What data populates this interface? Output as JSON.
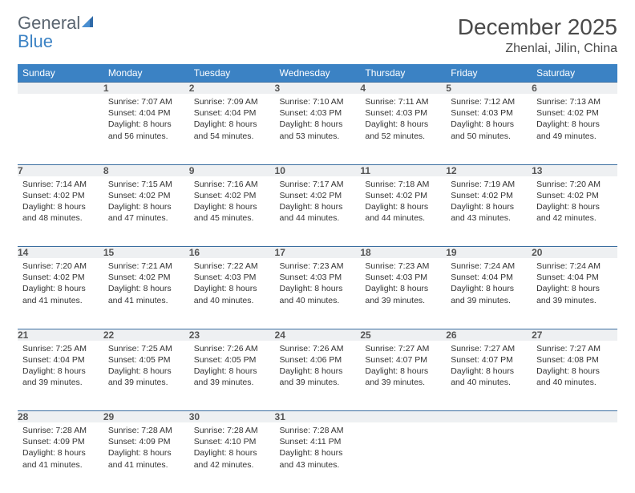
{
  "logo": {
    "word1": "General",
    "word2": "Blue"
  },
  "title": "December 2025",
  "location": "Zhenlai, Jilin, China",
  "headers": [
    "Sunday",
    "Monday",
    "Tuesday",
    "Wednesday",
    "Thursday",
    "Friday",
    "Saturday"
  ],
  "colors": {
    "header_bg": "#3b82c4",
    "header_text": "#ffffff",
    "daynum_bg": "#eef0f2",
    "row_border": "#3b6ea0",
    "text": "#333333",
    "logo_gray": "#5a6570",
    "logo_blue": "#3b82c4"
  },
  "weeks": [
    {
      "nums": [
        "",
        "1",
        "2",
        "3",
        "4",
        "5",
        "6"
      ],
      "cells": [
        null,
        {
          "sunrise": "7:07 AM",
          "sunset": "4:04 PM",
          "daylight": "8 hours and 56 minutes."
        },
        {
          "sunrise": "7:09 AM",
          "sunset": "4:04 PM",
          "daylight": "8 hours and 54 minutes."
        },
        {
          "sunrise": "7:10 AM",
          "sunset": "4:03 PM",
          "daylight": "8 hours and 53 minutes."
        },
        {
          "sunrise": "7:11 AM",
          "sunset": "4:03 PM",
          "daylight": "8 hours and 52 minutes."
        },
        {
          "sunrise": "7:12 AM",
          "sunset": "4:03 PM",
          "daylight": "8 hours and 50 minutes."
        },
        {
          "sunrise": "7:13 AM",
          "sunset": "4:02 PM",
          "daylight": "8 hours and 49 minutes."
        }
      ]
    },
    {
      "nums": [
        "7",
        "8",
        "9",
        "10",
        "11",
        "12",
        "13"
      ],
      "cells": [
        {
          "sunrise": "7:14 AM",
          "sunset": "4:02 PM",
          "daylight": "8 hours and 48 minutes."
        },
        {
          "sunrise": "7:15 AM",
          "sunset": "4:02 PM",
          "daylight": "8 hours and 47 minutes."
        },
        {
          "sunrise": "7:16 AM",
          "sunset": "4:02 PM",
          "daylight": "8 hours and 45 minutes."
        },
        {
          "sunrise": "7:17 AM",
          "sunset": "4:02 PM",
          "daylight": "8 hours and 44 minutes."
        },
        {
          "sunrise": "7:18 AM",
          "sunset": "4:02 PM",
          "daylight": "8 hours and 44 minutes."
        },
        {
          "sunrise": "7:19 AM",
          "sunset": "4:02 PM",
          "daylight": "8 hours and 43 minutes."
        },
        {
          "sunrise": "7:20 AM",
          "sunset": "4:02 PM",
          "daylight": "8 hours and 42 minutes."
        }
      ]
    },
    {
      "nums": [
        "14",
        "15",
        "16",
        "17",
        "18",
        "19",
        "20"
      ],
      "cells": [
        {
          "sunrise": "7:20 AM",
          "sunset": "4:02 PM",
          "daylight": "8 hours and 41 minutes."
        },
        {
          "sunrise": "7:21 AM",
          "sunset": "4:02 PM",
          "daylight": "8 hours and 41 minutes."
        },
        {
          "sunrise": "7:22 AM",
          "sunset": "4:03 PM",
          "daylight": "8 hours and 40 minutes."
        },
        {
          "sunrise": "7:23 AM",
          "sunset": "4:03 PM",
          "daylight": "8 hours and 40 minutes."
        },
        {
          "sunrise": "7:23 AM",
          "sunset": "4:03 PM",
          "daylight": "8 hours and 39 minutes."
        },
        {
          "sunrise": "7:24 AM",
          "sunset": "4:04 PM",
          "daylight": "8 hours and 39 minutes."
        },
        {
          "sunrise": "7:24 AM",
          "sunset": "4:04 PM",
          "daylight": "8 hours and 39 minutes."
        }
      ]
    },
    {
      "nums": [
        "21",
        "22",
        "23",
        "24",
        "25",
        "26",
        "27"
      ],
      "cells": [
        {
          "sunrise": "7:25 AM",
          "sunset": "4:04 PM",
          "daylight": "8 hours and 39 minutes."
        },
        {
          "sunrise": "7:25 AM",
          "sunset": "4:05 PM",
          "daylight": "8 hours and 39 minutes."
        },
        {
          "sunrise": "7:26 AM",
          "sunset": "4:05 PM",
          "daylight": "8 hours and 39 minutes."
        },
        {
          "sunrise": "7:26 AM",
          "sunset": "4:06 PM",
          "daylight": "8 hours and 39 minutes."
        },
        {
          "sunrise": "7:27 AM",
          "sunset": "4:07 PM",
          "daylight": "8 hours and 39 minutes."
        },
        {
          "sunrise": "7:27 AM",
          "sunset": "4:07 PM",
          "daylight": "8 hours and 40 minutes."
        },
        {
          "sunrise": "7:27 AM",
          "sunset": "4:08 PM",
          "daylight": "8 hours and 40 minutes."
        }
      ]
    },
    {
      "nums": [
        "28",
        "29",
        "30",
        "31",
        "",
        "",
        ""
      ],
      "cells": [
        {
          "sunrise": "7:28 AM",
          "sunset": "4:09 PM",
          "daylight": "8 hours and 41 minutes."
        },
        {
          "sunrise": "7:28 AM",
          "sunset": "4:09 PM",
          "daylight": "8 hours and 41 minutes."
        },
        {
          "sunrise": "7:28 AM",
          "sunset": "4:10 PM",
          "daylight": "8 hours and 42 minutes."
        },
        {
          "sunrise": "7:28 AM",
          "sunset": "4:11 PM",
          "daylight": "8 hours and 43 minutes."
        },
        null,
        null,
        null
      ]
    }
  ],
  "labels": {
    "sunrise": "Sunrise:",
    "sunset": "Sunset:",
    "daylight": "Daylight:"
  }
}
